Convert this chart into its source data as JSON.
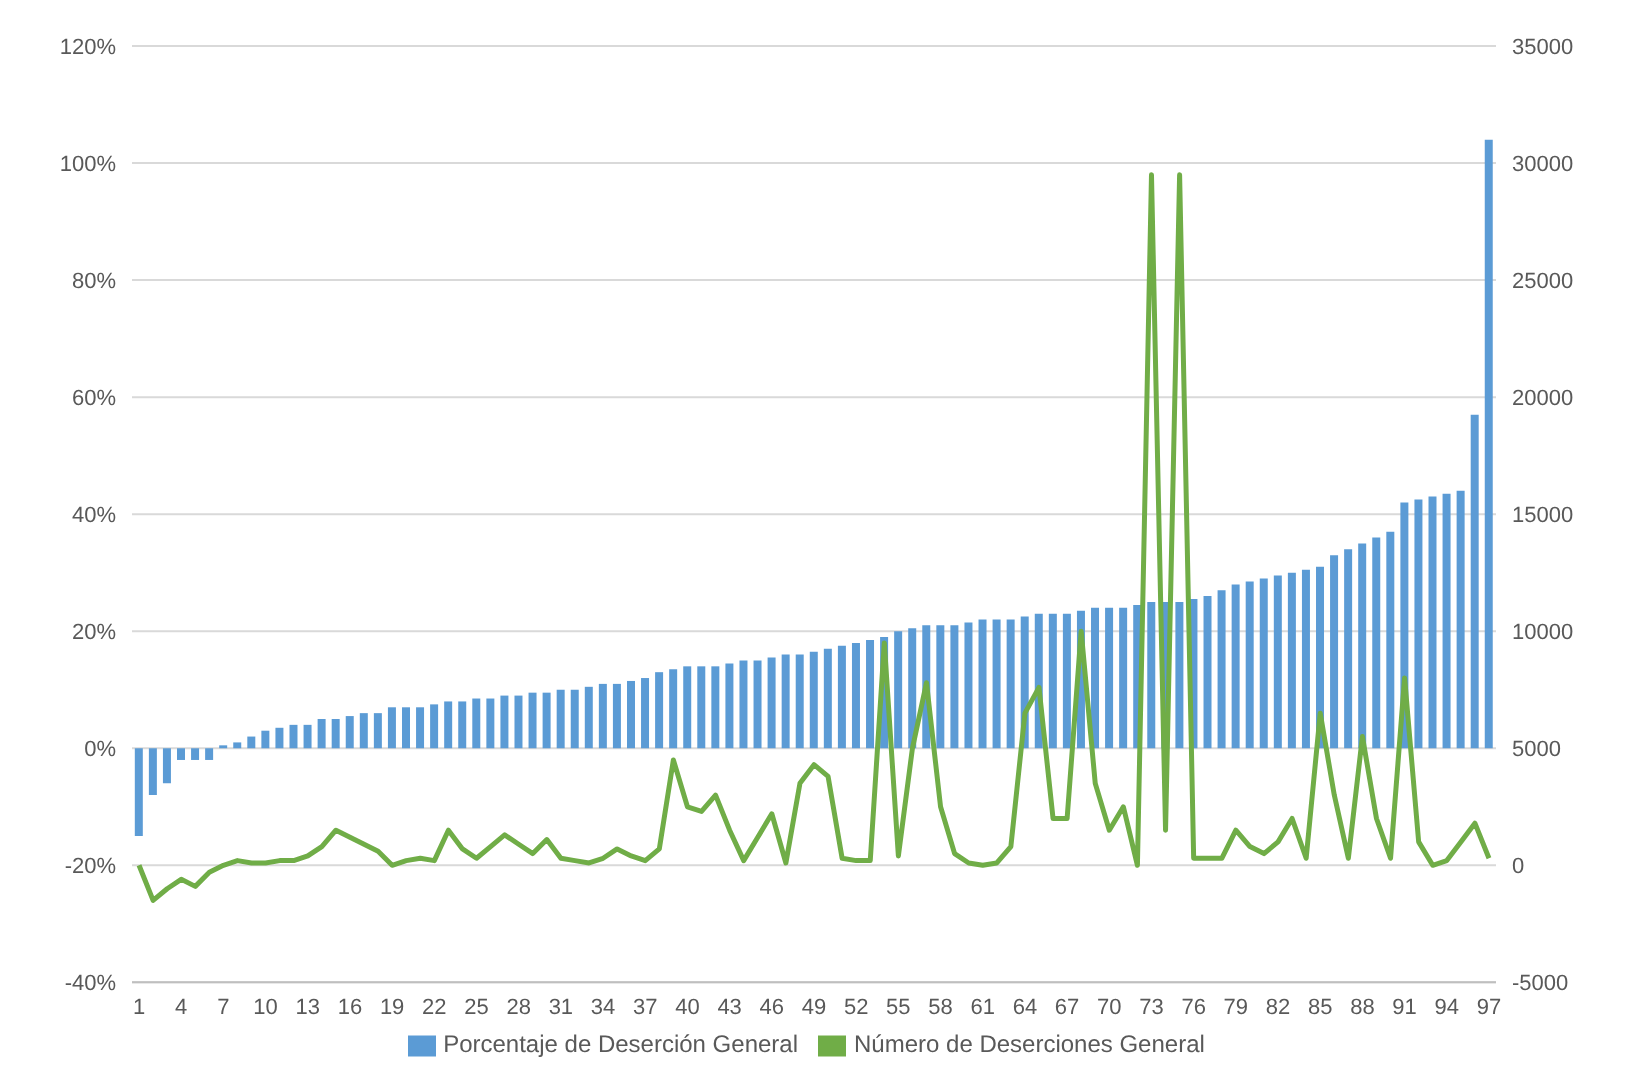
{
  "chart_data": {
    "type": "bar",
    "categories": [
      "1",
      null,
      null,
      "4",
      null,
      null,
      "7",
      null,
      null,
      "10",
      null,
      null,
      "13",
      null,
      null,
      "16",
      null,
      null,
      "19",
      null,
      null,
      "22",
      null,
      null,
      "25",
      null,
      null,
      "28",
      null,
      null,
      "31",
      null,
      null,
      "34",
      null,
      null,
      "37",
      null,
      null,
      "40",
      null,
      null,
      "43",
      null,
      null,
      "46",
      null,
      null,
      "49",
      null,
      null,
      "52",
      null,
      null,
      "55",
      null,
      null,
      "58",
      null,
      null,
      "61",
      null,
      null,
      "64",
      null,
      null,
      "67",
      null,
      null,
      "70",
      null,
      null,
      "73",
      null,
      null,
      "76",
      null,
      null,
      "79",
      null,
      null,
      "82",
      null,
      null,
      "85",
      null,
      null,
      "88",
      null,
      null,
      "91",
      null,
      null,
      "94",
      null,
      null,
      "97"
    ],
    "series": [
      {
        "name": "Porcentaje de Deserción General",
        "color": "#5b9bd5",
        "values": [
          -15,
          -8,
          -6,
          -2,
          -2,
          -2,
          0.5,
          1,
          2,
          3,
          3.5,
          4,
          4,
          5,
          5,
          5.5,
          6,
          6,
          7,
          7,
          7,
          7.5,
          8,
          8,
          8.5,
          8.5,
          9,
          9,
          9.5,
          9.5,
          10,
          10,
          10.5,
          11,
          11,
          11.5,
          12,
          13,
          13.5,
          14,
          14,
          14,
          14.5,
          15,
          15,
          15.5,
          16,
          16,
          16.5,
          17,
          17.5,
          18,
          18.5,
          19,
          20,
          20.5,
          21,
          21,
          21,
          21.5,
          22,
          22,
          22,
          22.5,
          23,
          23,
          23,
          23.5,
          24,
          24,
          24,
          24.5,
          25,
          25,
          25,
          25.5,
          26,
          27,
          28,
          28.5,
          29,
          29.5,
          30,
          30.5,
          31,
          33,
          34,
          35,
          36,
          37,
          42,
          42.5,
          43,
          43.5,
          44,
          57,
          104
        ]
      },
      {
        "name": "Número de Deserciones General",
        "type": "line",
        "axis": "y2",
        "color": "#70ad47",
        "values": [
          0,
          -1500,
          -1000,
          -600,
          -900,
          -300,
          0,
          200,
          100,
          100,
          200,
          200,
          400,
          800,
          1500,
          1200,
          900,
          600,
          0,
          200,
          300,
          200,
          1500,
          700,
          300,
          800,
          1300,
          900,
          500,
          1100,
          300,
          200,
          100,
          300,
          700,
          400,
          200,
          700,
          4500,
          2500,
          2300,
          3000,
          1500,
          200,
          1200,
          2200,
          100,
          3500,
          4300,
          3800,
          300,
          200,
          200,
          9500,
          400,
          5000,
          7800,
          2500,
          500,
          100,
          0,
          100,
          800,
          6500,
          7600,
          2000,
          2000,
          10000,
          3500,
          1500,
          2500,
          0,
          29500,
          1500,
          29500,
          300,
          300,
          300,
          1500,
          800,
          500,
          1000,
          2000,
          300,
          6500,
          3000,
          300,
          5500,
          2000,
          300,
          8000,
          1000,
          0,
          200,
          1000,
          1800,
          300
        ]
      }
    ],
    "ylim": [
      -40,
      120
    ],
    "yticks": [
      {
        "value": -40,
        "label": "-40%"
      },
      {
        "value": -20,
        "label": "-20%"
      },
      {
        "value": 0,
        "label": "0%"
      },
      {
        "value": 20,
        "label": "20%"
      },
      {
        "value": 40,
        "label": "40%"
      },
      {
        "value": 60,
        "label": "60%"
      },
      {
        "value": 80,
        "label": "80%"
      },
      {
        "value": 100,
        "label": "100%"
      },
      {
        "value": 120,
        "label": "120%"
      }
    ],
    "y2lim": [
      -5000,
      35000
    ],
    "y2ticks": [
      -5000,
      0,
      5000,
      10000,
      15000,
      20000,
      25000,
      30000,
      35000
    ],
    "grid": "y",
    "legend": "bottom"
  }
}
